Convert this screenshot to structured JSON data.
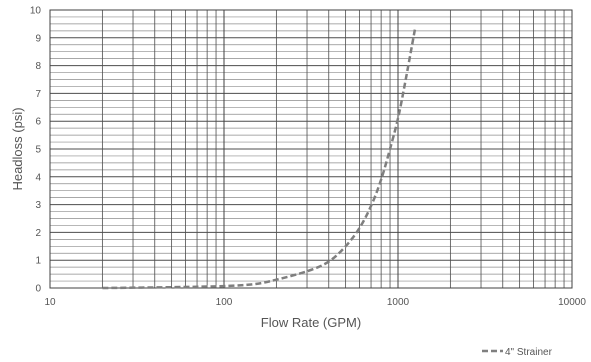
{
  "chart_data": {
    "type": "line",
    "xscale": "log",
    "xlim": [
      10,
      10000
    ],
    "ylim": [
      0,
      10
    ],
    "xlabel": "Flow Rate (GPM)",
    "ylabel": "Headloss (psi)",
    "x_tick_labels": [
      "10",
      "100",
      "1000",
      "10000"
    ],
    "y_tick_labels": [
      "0",
      "1",
      "2",
      "3",
      "4",
      "5",
      "6",
      "7",
      "8",
      "9",
      "10"
    ],
    "grid": true,
    "legend_position": "bottom-right",
    "series": [
      {
        "name": "4\" Strainer",
        "style": "dashed",
        "color": "#7f7f7f",
        "x": [
          20,
          50,
          100,
          150,
          200,
          300,
          400,
          500,
          600,
          700,
          800,
          900,
          1000,
          1100,
          1250
        ],
        "y": [
          0.0,
          0.03,
          0.07,
          0.14,
          0.3,
          0.6,
          0.95,
          1.5,
          2.15,
          2.95,
          3.9,
          5.0,
          6.1,
          7.4,
          9.3
        ]
      }
    ]
  }
}
